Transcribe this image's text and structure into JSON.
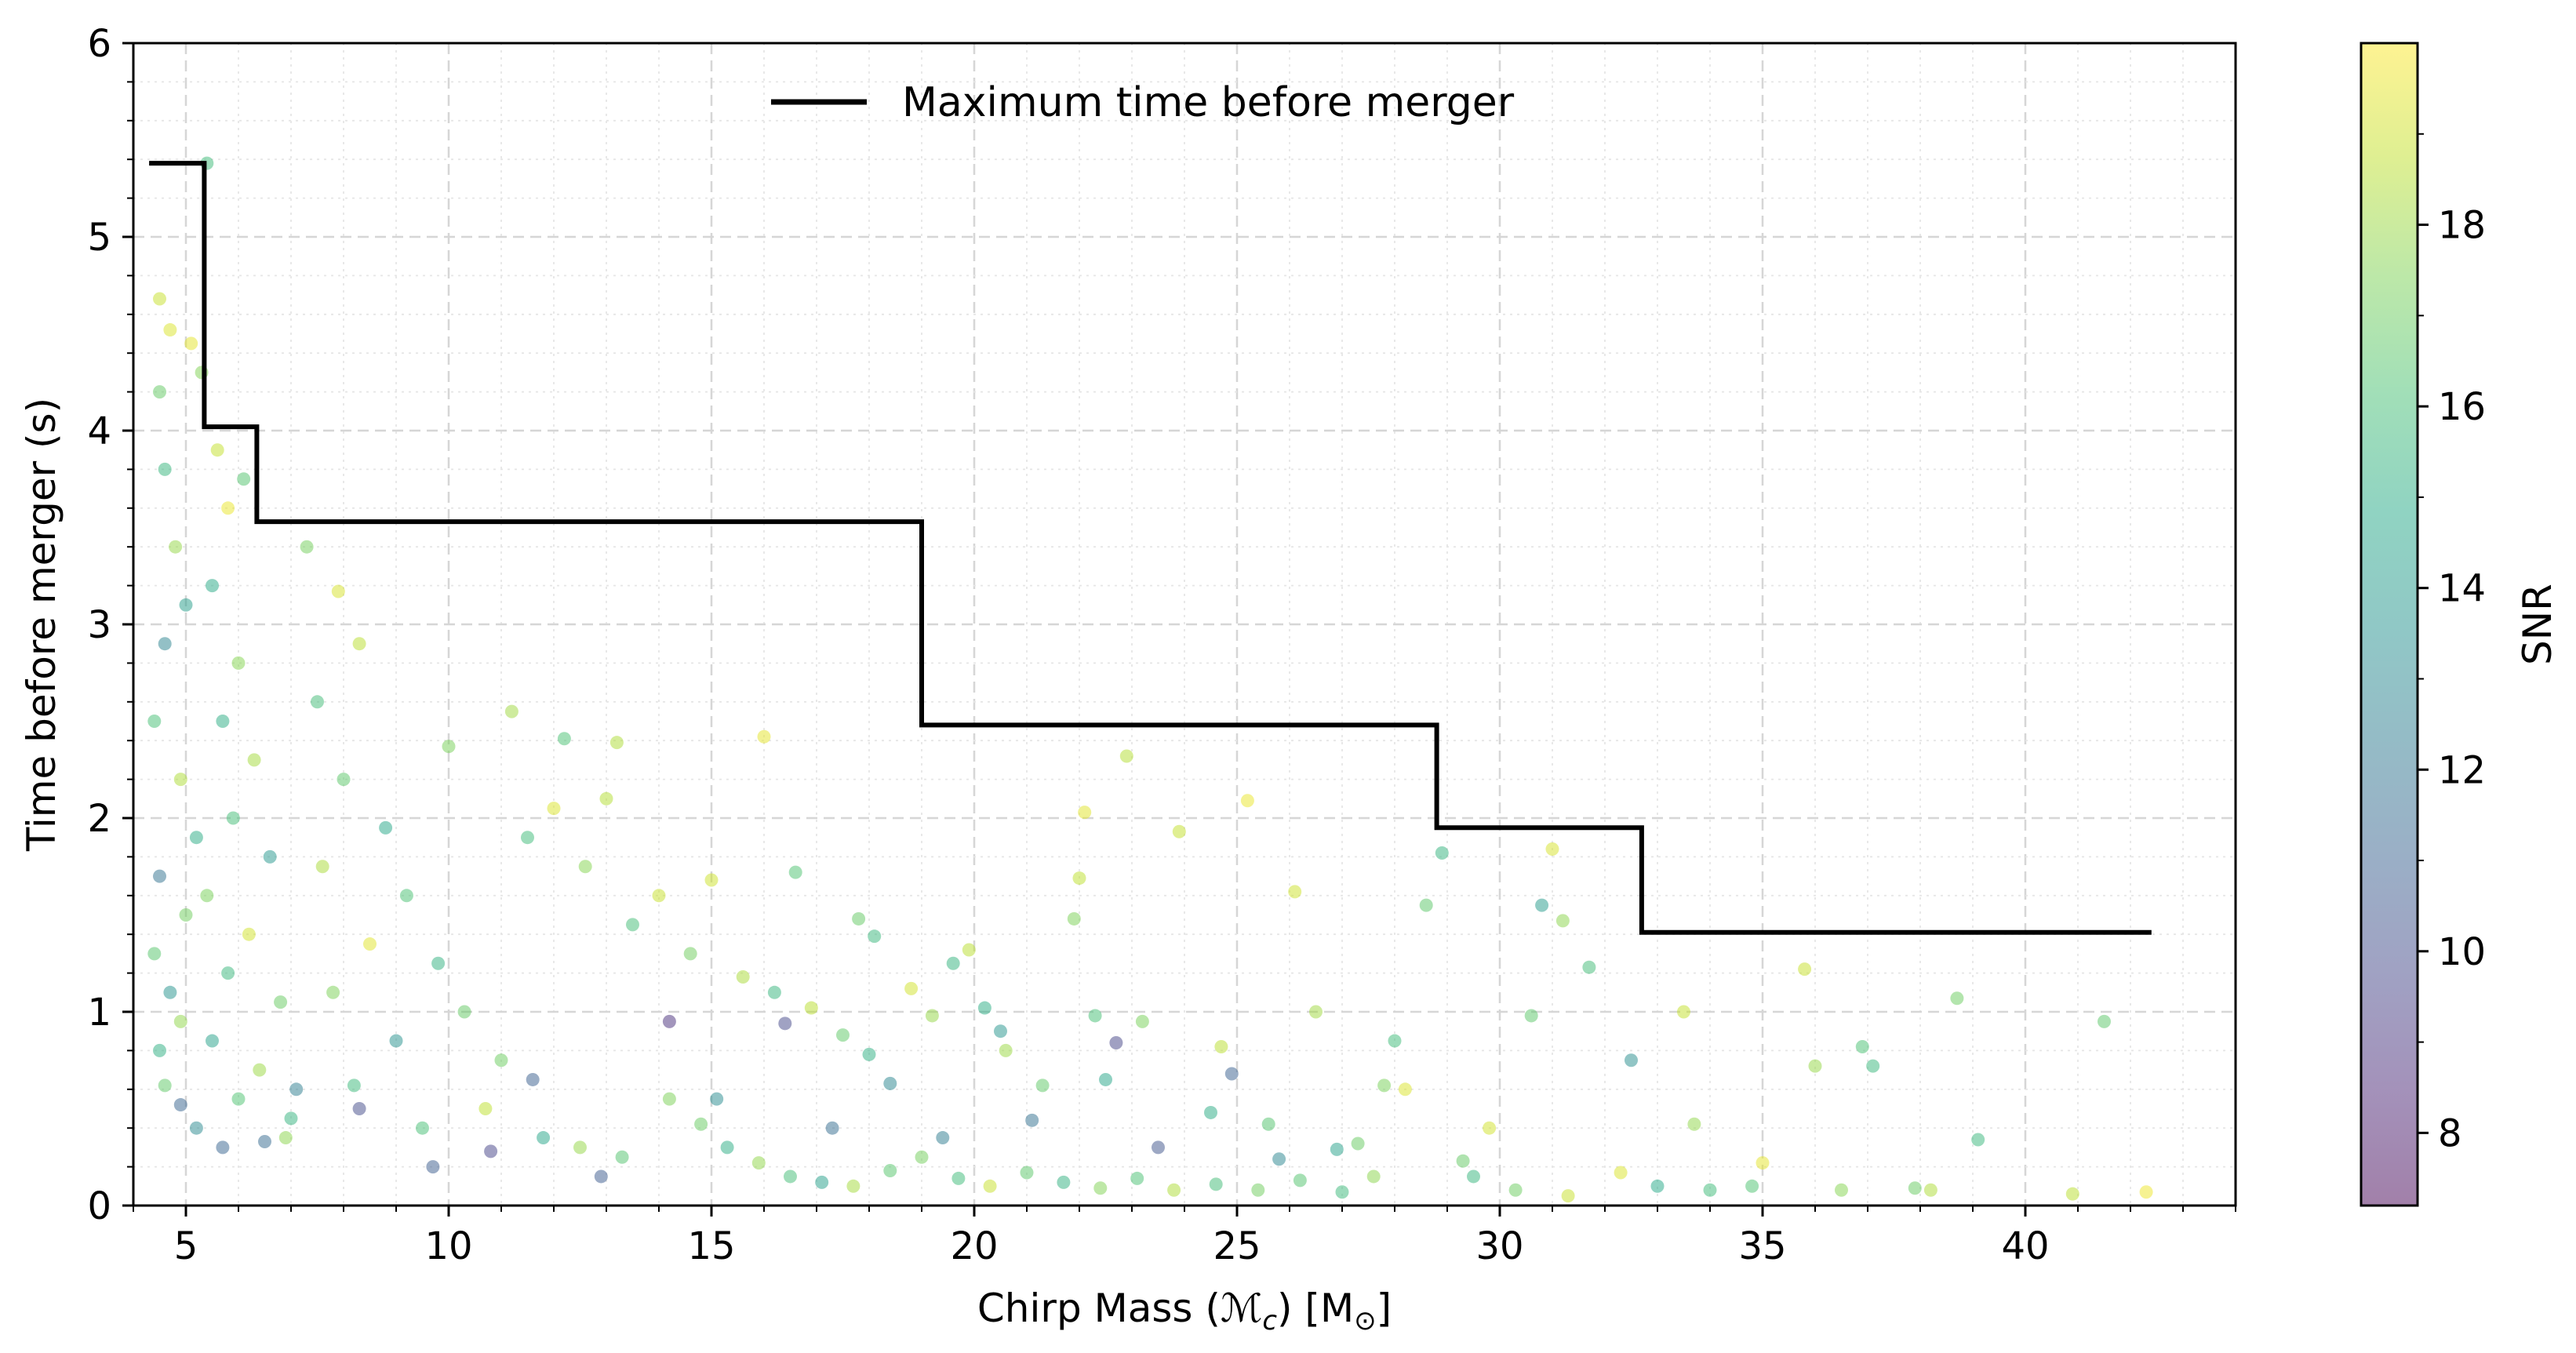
{
  "chart_data": {
    "type": "scatter",
    "title": "",
    "xlabel": "Chirp Mass (ℳc) [M⊙]",
    "xlabel_parts": {
      "prefix": "Chirp Mass (",
      "symbol": "ℳ",
      "subscript": "c",
      "middle": ") [M",
      "sun": "⊙",
      "suffix": "]"
    },
    "ylabel": "Time before merger (s)",
    "xlim": [
      4.0,
      44.0
    ],
    "ylim": [
      0,
      6
    ],
    "xticks": [
      5,
      10,
      15,
      20,
      25,
      30,
      35,
      40
    ],
    "yticks": [
      0,
      1,
      2,
      3,
      4,
      5,
      6
    ],
    "grid": true,
    "colorbar": {
      "label": "SNR",
      "range": [
        7.2,
        20.0
      ],
      "ticks": [
        8,
        10,
        12,
        14,
        16,
        18
      ],
      "colormap": "viridis",
      "alpha": 0.5
    },
    "legend": {
      "position": "top-center",
      "entries": [
        "Maximum time before merger"
      ]
    },
    "series": [
      {
        "name": "Maximum time before merger",
        "type": "step-line",
        "color": "#000000",
        "points": [
          [
            4.3,
            5.38
          ],
          [
            5.35,
            5.38
          ],
          [
            5.35,
            4.02
          ],
          [
            6.35,
            4.02
          ],
          [
            6.35,
            3.53
          ],
          [
            19.0,
            3.53
          ],
          [
            19.0,
            2.48
          ],
          [
            28.8,
            2.48
          ],
          [
            28.8,
            1.95
          ],
          [
            32.7,
            1.95
          ],
          [
            32.7,
            1.41
          ],
          [
            42.4,
            1.41
          ]
        ]
      },
      {
        "name": "Events",
        "type": "scatter",
        "description": "Detected events: x = chirp mass, y = time before merger, c = SNR",
        "points": [
          [
            4.5,
            4.68,
            18.9
          ],
          [
            4.7,
            4.52,
            19.3
          ],
          [
            4.5,
            4.2,
            16.8
          ],
          [
            4.6,
            3.8,
            15.5
          ],
          [
            4.8,
            3.4,
            17.9
          ],
          [
            5.0,
            3.1,
            14.2
          ],
          [
            4.6,
            2.9,
            12.8
          ],
          [
            4.4,
            2.5,
            16.1
          ],
          [
            4.9,
            2.2,
            18.4
          ],
          [
            5.2,
            1.9,
            15.0
          ],
          [
            4.5,
            1.7,
            11.9
          ],
          [
            5.0,
            1.5,
            17.1
          ],
          [
            4.4,
            1.3,
            16.5
          ],
          [
            4.7,
            1.1,
            13.6
          ],
          [
            4.9,
            0.95,
            17.8
          ],
          [
            4.5,
            0.8,
            15.2
          ],
          [
            4.6,
            0.62,
            16.7
          ],
          [
            4.9,
            0.52,
            11.2
          ],
          [
            5.1,
            4.45,
            19.5
          ],
          [
            5.4,
            5.38,
            15.8
          ],
          [
            5.3,
            4.3,
            17.5
          ],
          [
            5.6,
            3.9,
            18.8
          ],
          [
            5.8,
            3.6,
            19.6
          ],
          [
            6.1,
            3.75,
            16.4
          ],
          [
            5.5,
            3.2,
            14.9
          ],
          [
            6.0,
            2.8,
            17.6
          ],
          [
            5.7,
            2.5,
            15.1
          ],
          [
            6.3,
            2.3,
            18.2
          ],
          [
            5.9,
            2.0,
            16.0
          ],
          [
            6.6,
            1.8,
            13.8
          ],
          [
            5.4,
            1.6,
            17.3
          ],
          [
            6.2,
            1.4,
            19.1
          ],
          [
            5.8,
            1.2,
            15.6
          ],
          [
            6.8,
            1.05,
            16.9
          ],
          [
            5.5,
            0.85,
            14.4
          ],
          [
            6.4,
            0.7,
            18.0
          ],
          [
            6.0,
            0.55,
            16.3
          ],
          [
            7.0,
            0.45,
            15.4
          ],
          [
            5.2,
            0.4,
            13.1
          ],
          [
            6.9,
            0.35,
            17.7
          ],
          [
            7.3,
            3.4,
            17.2
          ],
          [
            7.9,
            3.17,
            19.2
          ],
          [
            7.5,
            2.6,
            15.9
          ],
          [
            8.3,
            2.9,
            18.6
          ],
          [
            8.0,
            2.2,
            16.6
          ],
          [
            8.8,
            1.95,
            14.7
          ],
          [
            7.6,
            1.75,
            18.3
          ],
          [
            9.2,
            1.6,
            16.2
          ],
          [
            8.5,
            1.35,
            19.4
          ],
          [
            9.8,
            1.25,
            15.3
          ],
          [
            7.8,
            1.1,
            17.4
          ],
          [
            10.3,
            1.0,
            16.8
          ],
          [
            9.0,
            0.85,
            13.5
          ],
          [
            11.0,
            0.75,
            17.0
          ],
          [
            8.2,
            0.62,
            15.7
          ],
          [
            10.7,
            0.5,
            18.7
          ],
          [
            9.5,
            0.4,
            16.1
          ],
          [
            11.8,
            0.35,
            14.6
          ],
          [
            12.5,
            0.3,
            17.9
          ],
          [
            13.3,
            0.25,
            16.4
          ],
          [
            10.0,
            2.37,
            17.3
          ],
          [
            11.2,
            2.55,
            18.1
          ],
          [
            12.2,
            2.41,
            16.2
          ],
          [
            13.2,
            2.39,
            18.4
          ],
          [
            12.0,
            2.05,
            19.3
          ],
          [
            13.0,
            2.1,
            18.5
          ],
          [
            11.5,
            1.9,
            15.8
          ],
          [
            12.6,
            1.75,
            17.6
          ],
          [
            14.0,
            1.6,
            18.9
          ],
          [
            13.5,
            1.45,
            16.0
          ],
          [
            15.0,
            1.68,
            19.0
          ],
          [
            14.6,
            1.3,
            17.1
          ],
          [
            15.6,
            1.18,
            18.3
          ],
          [
            16.2,
            1.1,
            15.5
          ],
          [
            16.9,
            1.02,
            18.6
          ],
          [
            17.5,
            0.88,
            16.7
          ],
          [
            18.0,
            0.78,
            15.2
          ],
          [
            16.0,
            2.42,
            19.5
          ],
          [
            16.6,
            1.72,
            16.3
          ],
          [
            18.1,
            1.39,
            15.6
          ],
          [
            14.2,
            0.55,
            17.4
          ],
          [
            14.8,
            0.42,
            16.9
          ],
          [
            15.3,
            0.3,
            15.1
          ],
          [
            15.9,
            0.22,
            17.8
          ],
          [
            16.5,
            0.15,
            16.0
          ],
          [
            17.1,
            0.12,
            14.3
          ],
          [
            17.7,
            0.1,
            18.2
          ],
          [
            18.4,
            0.18,
            16.5
          ],
          [
            19.0,
            0.25,
            17.2
          ],
          [
            19.7,
            0.14,
            15.8
          ],
          [
            20.3,
            0.1,
            18.9
          ],
          [
            21.0,
            0.17,
            16.6
          ],
          [
            21.7,
            0.12,
            15.3
          ],
          [
            22.4,
            0.09,
            17.5
          ],
          [
            23.1,
            0.14,
            16.2
          ],
          [
            23.8,
            0.08,
            18.4
          ],
          [
            24.6,
            0.11,
            15.9
          ],
          [
            25.4,
            0.08,
            17.1
          ],
          [
            26.2,
            0.13,
            16.4
          ],
          [
            27.0,
            0.07,
            15.7
          ],
          [
            17.8,
            1.48,
            16.8
          ],
          [
            18.8,
            1.12,
            19.1
          ],
          [
            19.2,
            0.98,
            17.9
          ],
          [
            19.9,
            1.32,
            18.6
          ],
          [
            19.6,
            1.25,
            15.4
          ],
          [
            20.2,
            1.02,
            15.1
          ],
          [
            20.6,
            0.8,
            18.0
          ],
          [
            21.3,
            0.62,
            16.7
          ],
          [
            21.9,
            1.48,
            17.4
          ],
          [
            22.0,
            1.69,
            18.7
          ],
          [
            22.1,
            2.03,
            19.4
          ],
          [
            22.3,
            0.98,
            16.1
          ],
          [
            22.5,
            0.65,
            14.6
          ],
          [
            22.9,
            2.32,
            18.5
          ],
          [
            23.2,
            0.95,
            17.3
          ],
          [
            23.9,
            1.93,
            18.8
          ],
          [
            24.5,
            0.48,
            15.0
          ],
          [
            24.7,
            0.82,
            18.6
          ],
          [
            25.2,
            2.09,
            19.6
          ],
          [
            25.6,
            0.42,
            16.4
          ],
          [
            26.1,
            1.62,
            19.0
          ],
          [
            26.5,
            1.0,
            18.1
          ],
          [
            27.3,
            0.32,
            16.9
          ],
          [
            27.8,
            0.62,
            17.3
          ],
          [
            28.0,
            0.85,
            15.8
          ],
          [
            28.2,
            0.6,
            19.3
          ],
          [
            28.6,
            1.55,
            16.6
          ],
          [
            28.9,
            1.82,
            15.4
          ],
          [
            29.3,
            0.23,
            16.8
          ],
          [
            29.8,
            0.4,
            19.1
          ],
          [
            30.3,
            0.08,
            17.0
          ],
          [
            30.6,
            0.98,
            16.6
          ],
          [
            31.0,
            1.84,
            19.2
          ],
          [
            31.2,
            1.47,
            17.7
          ],
          [
            31.7,
            1.23,
            15.9
          ],
          [
            32.3,
            0.17,
            19.3
          ],
          [
            32.5,
            0.75,
            13.3
          ],
          [
            33.5,
            1.0,
            18.8
          ],
          [
            33.7,
            0.42,
            17.8
          ],
          [
            34.0,
            0.08,
            15.8
          ],
          [
            35.0,
            0.22,
            19.5
          ],
          [
            35.8,
            1.22,
            18.9
          ],
          [
            36.0,
            0.72,
            17.9
          ],
          [
            36.5,
            0.08,
            17.6
          ],
          [
            36.9,
            0.82,
            16.2
          ],
          [
            37.1,
            0.72,
            15.6
          ],
          [
            37.9,
            0.09,
            16.9
          ],
          [
            38.2,
            0.08,
            18.4
          ],
          [
            38.7,
            1.07,
            17.0
          ],
          [
            39.1,
            0.34,
            15.6
          ],
          [
            40.9,
            0.06,
            18.6
          ],
          [
            41.5,
            0.95,
            16.6
          ],
          [
            42.3,
            0.07,
            19.7
          ],
          [
            34.8,
            0.1,
            16.3
          ],
          [
            33.0,
            0.1,
            14.8
          ],
          [
            31.3,
            0.05,
            18.9
          ],
          [
            29.5,
            0.15,
            15.5
          ],
          [
            27.6,
            0.15,
            17.7
          ],
          [
            24.9,
            0.68,
            11.0
          ],
          [
            22.7,
            0.84,
            9.7
          ],
          [
            16.4,
            0.94,
            9.8
          ],
          [
            14.2,
            0.95,
            8.8
          ],
          [
            23.5,
            0.3,
            10.4
          ],
          [
            21.1,
            0.44,
            11.8
          ],
          [
            18.4,
            0.63,
            12.9
          ],
          [
            19.4,
            0.35,
            12.4
          ],
          [
            6.5,
            0.33,
            11.5
          ],
          [
            8.3,
            0.5,
            9.9
          ],
          [
            9.7,
            0.2,
            10.8
          ],
          [
            7.1,
            0.6,
            12.5
          ],
          [
            5.7,
            0.3,
            11.2
          ],
          [
            12.9,
            0.15,
            10.7
          ],
          [
            10.8,
            0.28,
            9.6
          ],
          [
            15.1,
            0.55,
            13.2
          ],
          [
            20.5,
            0.9,
            13.7
          ],
          [
            26.9,
            0.29,
            14.4
          ],
          [
            30.8,
            1.55,
            14.1
          ],
          [
            25.8,
            0.24,
            12.9
          ],
          [
            17.3,
            0.4,
            11.6
          ],
          [
            11.6,
            0.65,
            10.9
          ]
        ]
      }
    ]
  }
}
